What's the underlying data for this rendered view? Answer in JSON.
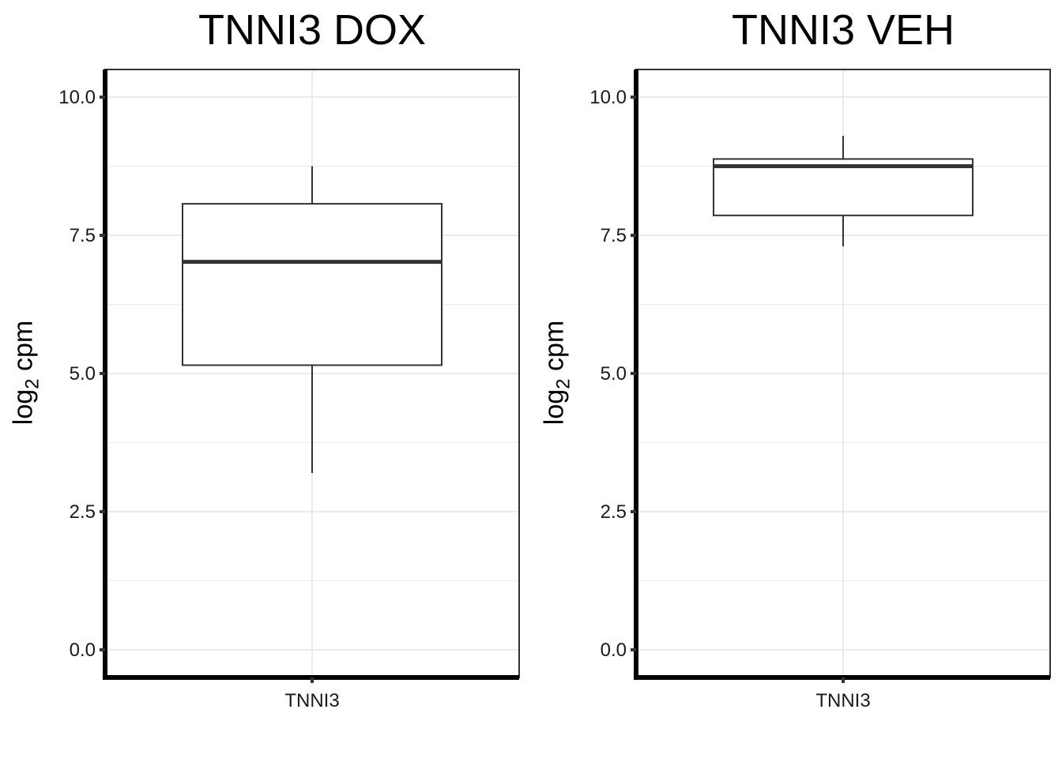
{
  "chart_data": [
    {
      "type": "box",
      "title": "TNNI3 DOX",
      "ylabel": "log",
      "ylabel_subscript": "2",
      "ylabel_suffix": " cpm",
      "categories": [
        "TNNI3"
      ],
      "ylim": [
        -0.5,
        10.5
      ],
      "yticks": [
        0.0,
        2.5,
        5.0,
        7.5,
        10.0
      ],
      "ytick_labels": [
        "0.0",
        "2.5",
        "5.0",
        "7.5",
        "10.0"
      ],
      "boxes": [
        {
          "category": "TNNI3",
          "whisker_low": 3.2,
          "q1": 5.15,
          "median": 7.02,
          "q3": 8.07,
          "whisker_high": 8.75
        }
      ],
      "grid": true,
      "colors": {
        "box_fill": "#ffffff",
        "box_stroke": "#333333",
        "grid": "#ebebeb",
        "axis": "#000000"
      }
    },
    {
      "type": "box",
      "title": "TNNI3 VEH",
      "ylabel": "log",
      "ylabel_subscript": "2",
      "ylabel_suffix": " cpm",
      "categories": [
        "TNNI3"
      ],
      "ylim": [
        -0.5,
        10.5
      ],
      "yticks": [
        0.0,
        2.5,
        5.0,
        7.5,
        10.0
      ],
      "ytick_labels": [
        "0.0",
        "2.5",
        "5.0",
        "7.5",
        "10.0"
      ],
      "boxes": [
        {
          "category": "TNNI3",
          "whisker_low": 7.3,
          "q1": 7.86,
          "median": 8.75,
          "q3": 8.88,
          "whisker_high": 9.3
        }
      ],
      "grid": true,
      "colors": {
        "box_fill": "#ffffff",
        "box_stroke": "#333333",
        "grid": "#ebebeb",
        "axis": "#000000"
      }
    }
  ]
}
